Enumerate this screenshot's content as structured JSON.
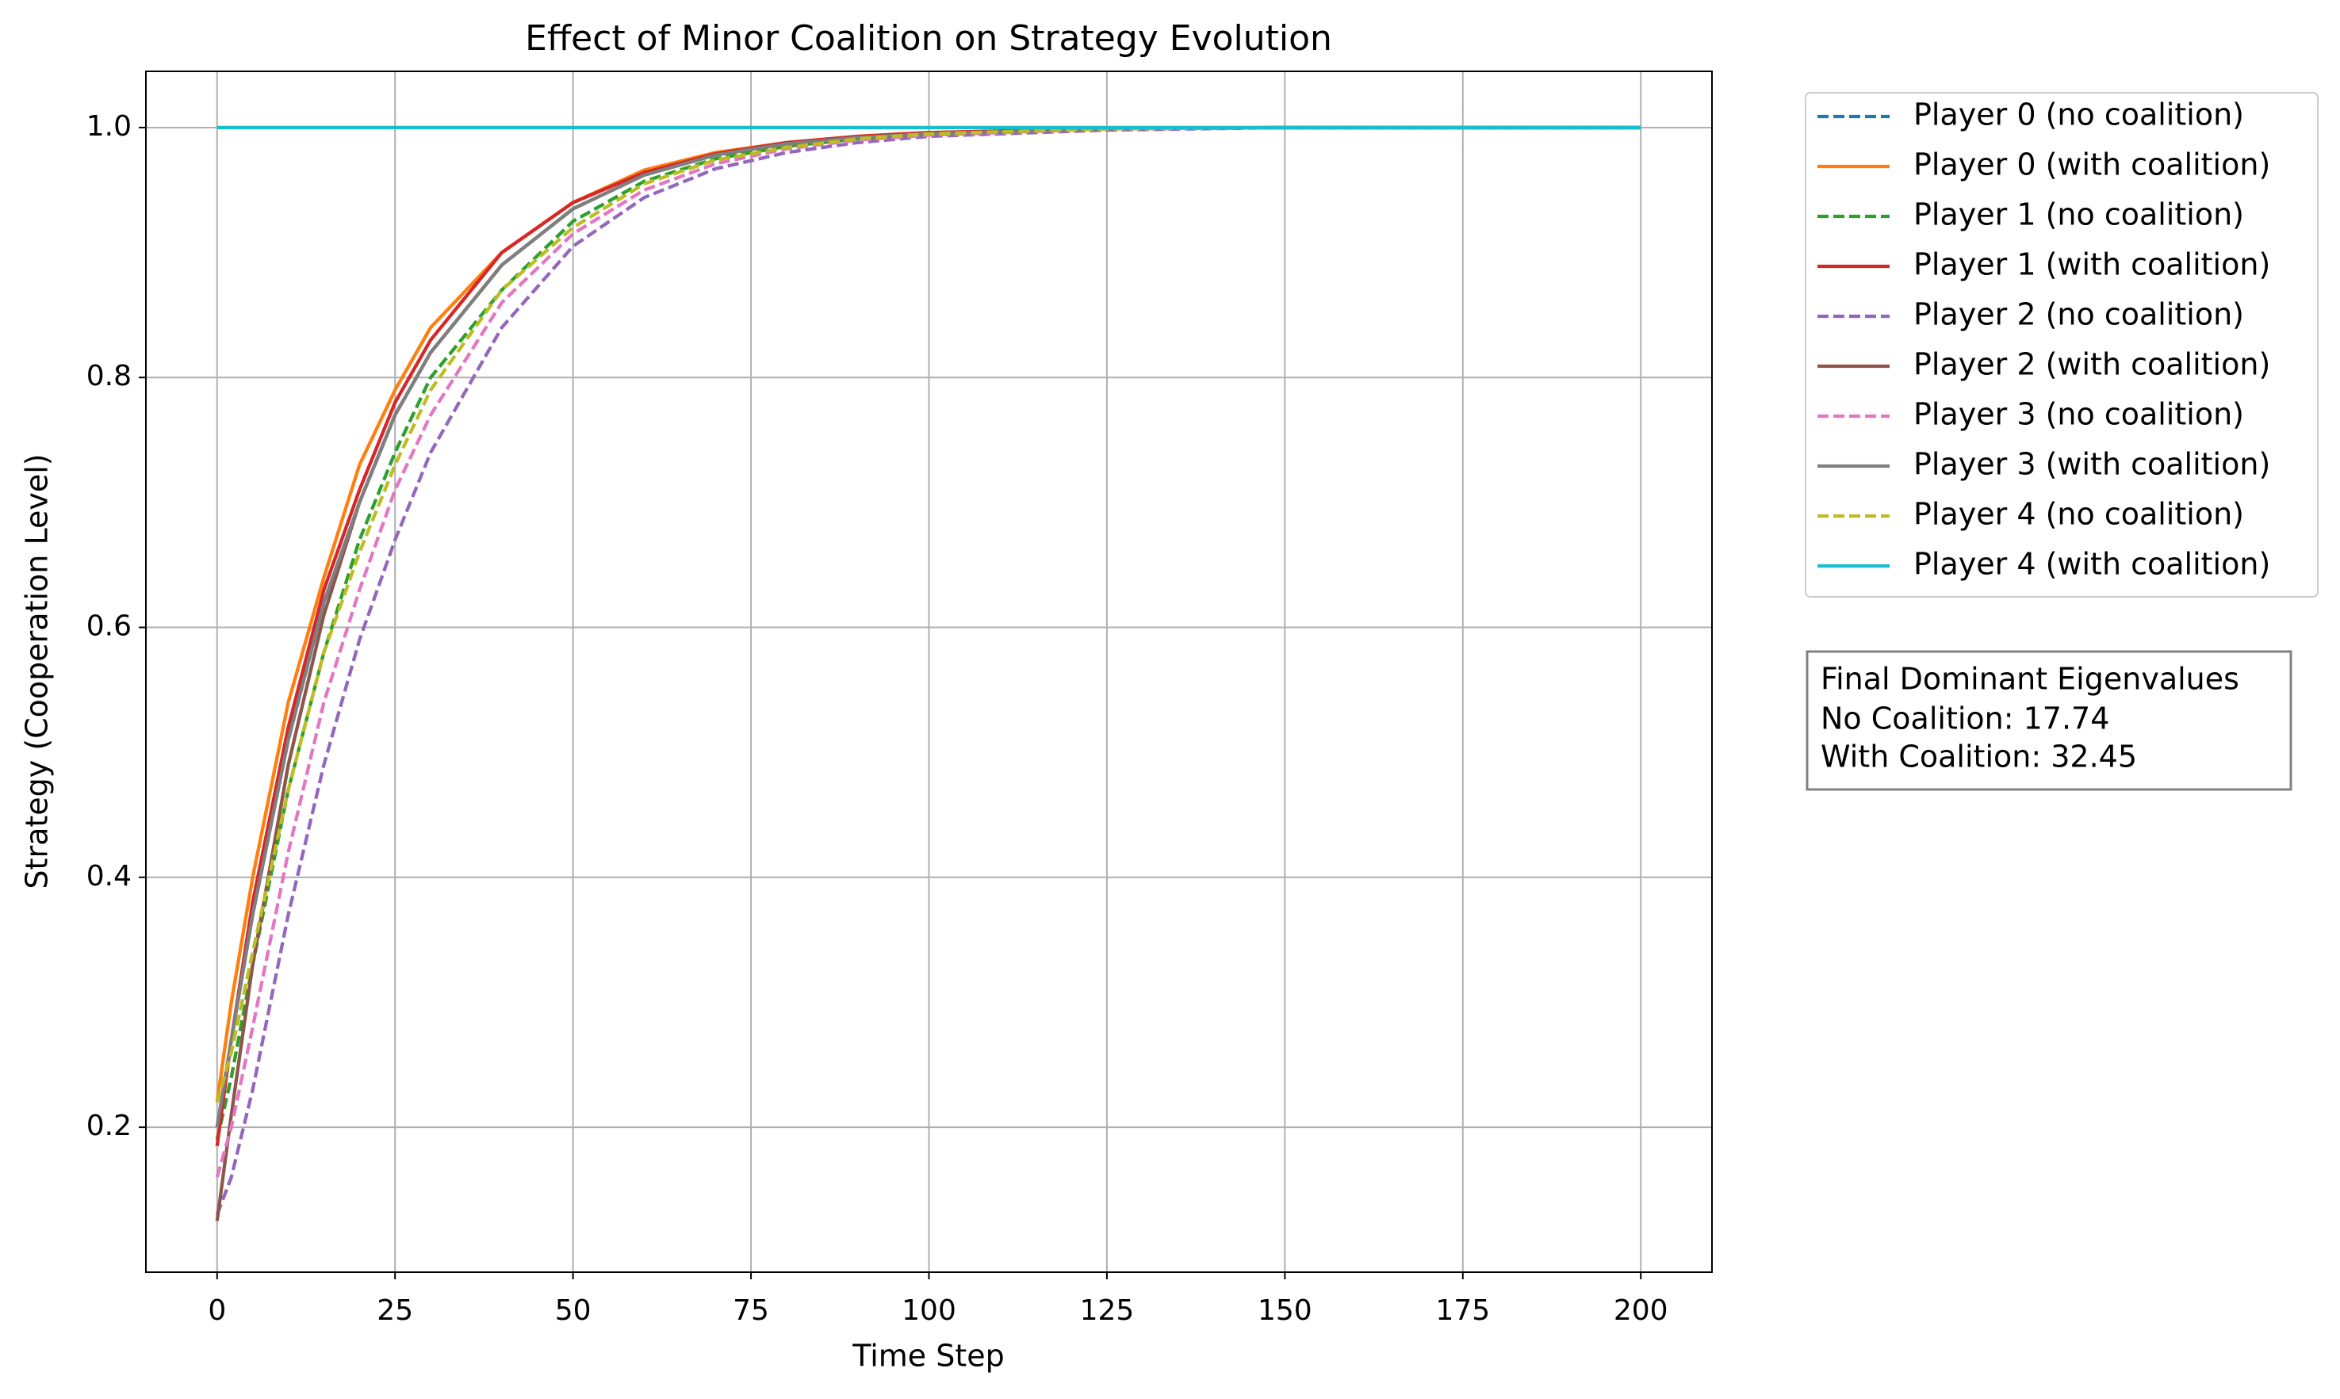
{
  "chart_data": {
    "type": "line",
    "title": "Effect of Minor Coalition on Strategy Evolution",
    "x_label": "Time Step",
    "y_label": "Strategy (Cooperation Level)",
    "x": [
      0,
      2,
      5,
      10,
      15,
      20,
      25,
      30,
      40,
      50,
      60,
      70,
      80,
      90,
      100,
      125,
      150,
      175,
      200
    ],
    "series": [
      {
        "name": "Player 0 (no coalition)",
        "color": "#1f77b4",
        "style": "dashed",
        "values": [
          0.2,
          0.27,
          0.37,
          0.51,
          0.62,
          0.7,
          0.77,
          0.82,
          0.89,
          0.935,
          0.962,
          0.978,
          0.987,
          0.992,
          0.995,
          0.999,
          1,
          1,
          1
        ]
      },
      {
        "name": "Player 0 (with coalition)",
        "color": "#ff7f0e",
        "style": "solid",
        "values": [
          0.22,
          0.3,
          0.4,
          0.54,
          0.64,
          0.73,
          0.79,
          0.84,
          0.9,
          0.94,
          0.966,
          0.98,
          0.988,
          0.993,
          0.996,
          0.999,
          1,
          1,
          1
        ]
      },
      {
        "name": "Player 1 (no coalition)",
        "color": "#2ca02c",
        "style": "dashed",
        "values": [
          0.19,
          0.24,
          0.33,
          0.47,
          0.58,
          0.67,
          0.74,
          0.8,
          0.87,
          0.925,
          0.957,
          0.975,
          0.985,
          0.991,
          0.995,
          0.999,
          1,
          1,
          1
        ]
      },
      {
        "name": "Player 1 (with coalition)",
        "color": "#d62728",
        "style": "solid",
        "values": [
          0.185,
          0.27,
          0.38,
          0.52,
          0.63,
          0.71,
          0.78,
          0.83,
          0.9,
          0.94,
          0.964,
          0.979,
          0.988,
          0.993,
          0.996,
          0.999,
          1,
          1,
          1
        ]
      },
      {
        "name": "Player 2 (no coalition)",
        "color": "#9467bd",
        "style": "dashed",
        "values": [
          0.13,
          0.16,
          0.23,
          0.37,
          0.49,
          0.59,
          0.67,
          0.74,
          0.84,
          0.905,
          0.944,
          0.967,
          0.98,
          0.988,
          0.993,
          0.998,
          1,
          1,
          1
        ]
      },
      {
        "name": "Player 2 (with coalition)",
        "color": "#8c564b",
        "style": "solid",
        "values": [
          0.125,
          0.21,
          0.33,
          0.49,
          0.61,
          0.7,
          0.77,
          0.82,
          0.89,
          0.935,
          0.962,
          0.978,
          0.987,
          0.992,
          0.995,
          0.999,
          1,
          1,
          1
        ]
      },
      {
        "name": "Player 3 (no coalition)",
        "color": "#e377c2",
        "style": "dashed",
        "values": [
          0.16,
          0.2,
          0.28,
          0.42,
          0.54,
          0.63,
          0.71,
          0.77,
          0.86,
          0.915,
          0.95,
          0.971,
          0.983,
          0.99,
          0.994,
          0.999,
          1,
          1,
          1
        ]
      },
      {
        "name": "Player 3 (with coalition)",
        "color": "#7f7f7f",
        "style": "solid",
        "values": [
          0.2,
          0.27,
          0.37,
          0.51,
          0.62,
          0.7,
          0.77,
          0.82,
          0.89,
          0.935,
          0.962,
          0.978,
          0.987,
          0.992,
          0.995,
          0.999,
          1,
          1,
          1
        ]
      },
      {
        "name": "Player 4 (no coalition)",
        "color": "#bcbd22",
        "style": "dashed",
        "values": [
          0.22,
          0.26,
          0.34,
          0.47,
          0.58,
          0.66,
          0.73,
          0.79,
          0.87,
          0.92,
          0.955,
          0.974,
          0.984,
          0.991,
          0.995,
          0.999,
          1,
          1,
          1
        ]
      },
      {
        "name": "Player 4 (with coalition)",
        "color": "#17becf",
        "style": "solid",
        "values": [
          1,
          1,
          1,
          1,
          1,
          1,
          1,
          1,
          1,
          1,
          1,
          1,
          1,
          1,
          1,
          1,
          1,
          1,
          1
        ]
      }
    ],
    "xlim": [
      -10,
      210
    ],
    "xticks": [
      0,
      25,
      50,
      75,
      100,
      125,
      150,
      175,
      200
    ],
    "ylim": [
      0.084,
      1.045
    ],
    "yticks": [
      0.2,
      0.4,
      0.6,
      0.8,
      {
        "value": 1,
        "label": "1.0"
      }
    ],
    "grid": true,
    "legend": "outside-right",
    "annotation": {
      "title": "Final Dominant Eigenvalues",
      "lines": [
        "No Coalition: 17.74",
        "With Coalition: 32.45"
      ]
    }
  }
}
